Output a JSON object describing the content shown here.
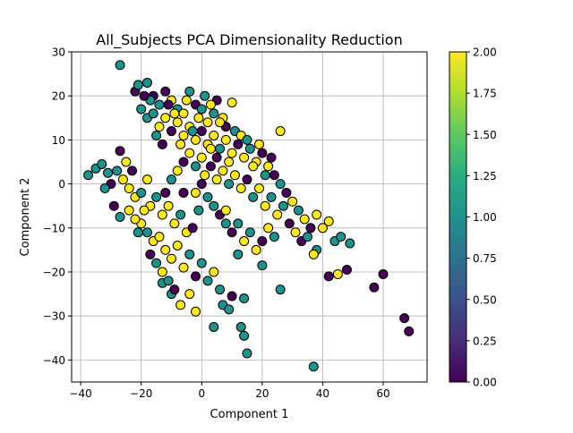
{
  "chart_data": {
    "type": "scatter",
    "title": "All_Subjects PCA Dimensionality Reduction",
    "xlabel": "Component 1",
    "ylabel": "Component 2",
    "xlim": [
      -43,
      74.5
    ],
    "ylim": [
      -45,
      30
    ],
    "xticks": [
      -40,
      -20,
      0,
      20,
      40,
      60
    ],
    "yticks": [
      -40,
      -30,
      -20,
      -10,
      0,
      10,
      20,
      30
    ],
    "grid": true,
    "colormap": "viridis",
    "color_range": [
      0,
      2
    ],
    "colorbar_ticks": [
      "0.00",
      "0.25",
      "0.50",
      "0.75",
      "1.00",
      "1.25",
      "1.50",
      "1.75",
      "2.00"
    ],
    "marker_edge_color": "#000000",
    "points": [
      {
        "x": -27,
        "y": 27,
        "c": 1
      },
      {
        "x": -22,
        "y": 21,
        "c": 0
      },
      {
        "x": -21,
        "y": 22.5,
        "c": 1
      },
      {
        "x": -18,
        "y": 23,
        "c": 1
      },
      {
        "x": -16,
        "y": 20,
        "c": 0
      },
      {
        "x": -14,
        "y": 18,
        "c": 1
      },
      {
        "x": -12,
        "y": 21,
        "c": 0
      },
      {
        "x": -10,
        "y": 19,
        "c": 2
      },
      {
        "x": -8,
        "y": 17,
        "c": 1
      },
      {
        "x": -6,
        "y": 16,
        "c": 2
      },
      {
        "x": -4,
        "y": 21,
        "c": 1
      },
      {
        "x": -2,
        "y": 18,
        "c": 0
      },
      {
        "x": 0,
        "y": 17,
        "c": 1
      },
      {
        "x": 2,
        "y": 14,
        "c": 2
      },
      {
        "x": 5,
        "y": 19,
        "c": 0
      },
      {
        "x": 7,
        "y": 15,
        "c": 2
      },
      {
        "x": 10,
        "y": 18.5,
        "c": 2
      },
      {
        "x": -20,
        "y": 17,
        "c": 1
      },
      {
        "x": -18,
        "y": 15,
        "c": 1
      },
      {
        "x": -16,
        "y": 16,
        "c": 1
      },
      {
        "x": -14,
        "y": 13,
        "c": 2
      },
      {
        "x": -12,
        "y": 15,
        "c": 2
      },
      {
        "x": -10,
        "y": 12,
        "c": 0
      },
      {
        "x": -8,
        "y": 14,
        "c": 2
      },
      {
        "x": -6,
        "y": 11,
        "c": 2
      },
      {
        "x": -4,
        "y": 13,
        "c": 2
      },
      {
        "x": -2,
        "y": 10,
        "c": 2
      },
      {
        "x": 0,
        "y": 12,
        "c": 0
      },
      {
        "x": 2,
        "y": 9,
        "c": 2
      },
      {
        "x": 4,
        "y": 11,
        "c": 2
      },
      {
        "x": 6,
        "y": 8,
        "c": 1
      },
      {
        "x": 8,
        "y": 10,
        "c": 2
      },
      {
        "x": 10,
        "y": 7,
        "c": 2
      },
      {
        "x": 12,
        "y": 9,
        "c": 0
      },
      {
        "x": 14,
        "y": 6,
        "c": 2
      },
      {
        "x": 16,
        "y": 8,
        "c": 1
      },
      {
        "x": 18,
        "y": 5,
        "c": 2
      },
      {
        "x": 20,
        "y": 7,
        "c": 0
      },
      {
        "x": 22,
        "y": 4,
        "c": 2
      },
      {
        "x": 24,
        "y": 2,
        "c": 0
      },
      {
        "x": 26,
        "y": 12,
        "c": 2
      },
      {
        "x": 26,
        "y": 0,
        "c": 1
      },
      {
        "x": 28,
        "y": -2,
        "c": 0
      },
      {
        "x": 30,
        "y": -4,
        "c": 2
      },
      {
        "x": 32,
        "y": -6,
        "c": 1
      },
      {
        "x": 34,
        "y": -8,
        "c": 2
      },
      {
        "x": 36,
        "y": -10,
        "c": 0
      },
      {
        "x": 38,
        "y": -7,
        "c": 2
      },
      {
        "x": 40,
        "y": -10,
        "c": 2
      },
      {
        "x": 42,
        "y": -8.5,
        "c": 2
      },
      {
        "x": 44,
        "y": -13,
        "c": 1
      },
      {
        "x": 46,
        "y": -12,
        "c": 1
      },
      {
        "x": 49,
        "y": -13.5,
        "c": 1
      },
      {
        "x": 38,
        "y": -15,
        "c": 1
      },
      {
        "x": 42,
        "y": -21,
        "c": 0
      },
      {
        "x": 45,
        "y": -20.5,
        "c": 2
      },
      {
        "x": 48,
        "y": -19.5,
        "c": 0
      },
      {
        "x": 57,
        "y": -23.5,
        "c": 0
      },
      {
        "x": 60,
        "y": -20.5,
        "c": 0
      },
      {
        "x": 67,
        "y": -30.5,
        "c": 0
      },
      {
        "x": 68.5,
        "y": -33.5,
        "c": 0
      },
      {
        "x": 37,
        "y": -41.5,
        "c": 1
      },
      {
        "x": 26,
        "y": -24,
        "c": 1
      },
      {
        "x": 20,
        "y": -18.5,
        "c": 1
      },
      {
        "x": 14,
        "y": -26,
        "c": 1
      },
      {
        "x": 13,
        "y": -32.5,
        "c": 1
      },
      {
        "x": 14,
        "y": -34.5,
        "c": 1
      },
      {
        "x": 15,
        "y": -38.5,
        "c": 1
      },
      {
        "x": 4,
        "y": -32.5,
        "c": 1
      },
      {
        "x": 7,
        "y": -27.5,
        "c": 1
      },
      {
        "x": 9,
        "y": -28.5,
        "c": 1
      },
      {
        "x": 10,
        "y": -25.5,
        "c": 0
      },
      {
        "x": -2,
        "y": -29,
        "c": 2
      },
      {
        "x": -7,
        "y": -27.5,
        "c": 2
      },
      {
        "x": -4,
        "y": -25,
        "c": 2
      },
      {
        "x": -10,
        "y": -25,
        "c": 1
      },
      {
        "x": -13,
        "y": -22.5,
        "c": 1
      },
      {
        "x": -37.5,
        "y": 2,
        "c": 1
      },
      {
        "x": -35,
        "y": 3.5,
        "c": 1
      },
      {
        "x": -33,
        "y": 4.5,
        "c": 1
      },
      {
        "x": -31,
        "y": 2.5,
        "c": 1
      },
      {
        "x": -30,
        "y": 0,
        "c": 0
      },
      {
        "x": -32,
        "y": -1,
        "c": 1
      },
      {
        "x": -28,
        "y": 3,
        "c": 1
      },
      {
        "x": -27,
        "y": 7.5,
        "c": 0
      },
      {
        "x": -25,
        "y": 5,
        "c": 2
      },
      {
        "x": -23,
        "y": 3,
        "c": 0
      },
      {
        "x": -26,
        "y": 1,
        "c": 2
      },
      {
        "x": -24,
        "y": -1,
        "c": 2
      },
      {
        "x": -22,
        "y": -3,
        "c": 2
      },
      {
        "x": -20,
        "y": -2,
        "c": 1
      },
      {
        "x": -18,
        "y": 1,
        "c": 2
      },
      {
        "x": -17,
        "y": -5,
        "c": 2
      },
      {
        "x": -15,
        "y": -3,
        "c": 1
      },
      {
        "x": -13,
        "y": -7,
        "c": 2
      },
      {
        "x": -11,
        "y": -5,
        "c": 2
      },
      {
        "x": -9,
        "y": -9,
        "c": 2
      },
      {
        "x": -7,
        "y": -7,
        "c": 1
      },
      {
        "x": -5,
        "y": -11,
        "c": 2
      },
      {
        "x": -3,
        "y": -10,
        "c": 0
      },
      {
        "x": -20,
        "y": -9,
        "c": 2
      },
      {
        "x": -18,
        "y": -11,
        "c": 1
      },
      {
        "x": -16,
        "y": -13,
        "c": 2
      },
      {
        "x": -14,
        "y": -12,
        "c": 2
      },
      {
        "x": -12,
        "y": -15,
        "c": 2
      },
      {
        "x": -10,
        "y": -17,
        "c": 2
      },
      {
        "x": -8,
        "y": -14,
        "c": 2
      },
      {
        "x": -6,
        "y": -19,
        "c": 2
      },
      {
        "x": -4,
        "y": -16,
        "c": 1
      },
      {
        "x": -2,
        "y": -21,
        "c": 0
      },
      {
        "x": 0,
        "y": -18,
        "c": 1
      },
      {
        "x": 2,
        "y": -22,
        "c": 1
      },
      {
        "x": 4,
        "y": -20,
        "c": 2
      },
      {
        "x": 6,
        "y": -24,
        "c": 1
      },
      {
        "x": -15,
        "y": -18,
        "c": 1
      },
      {
        "x": -17,
        "y": -16,
        "c": 0
      },
      {
        "x": -13,
        "y": -20,
        "c": 2
      },
      {
        "x": -11,
        "y": -22,
        "c": 1
      },
      {
        "x": -9,
        "y": -24,
        "c": 0
      },
      {
        "x": -29,
        "y": -5,
        "c": 0
      },
      {
        "x": -27,
        "y": -7.5,
        "c": 1
      },
      {
        "x": -24,
        "y": -6,
        "c": 2
      },
      {
        "x": -21,
        "y": -11,
        "c": 1
      },
      {
        "x": -22,
        "y": -8,
        "c": 2
      },
      {
        "x": -19,
        "y": -6,
        "c": 2
      },
      {
        "x": -12,
        "y": -2,
        "c": 0
      },
      {
        "x": -10,
        "y": 1,
        "c": 1
      },
      {
        "x": -8,
        "y": 3,
        "c": 2
      },
      {
        "x": -6,
        "y": 5,
        "c": 0
      },
      {
        "x": -4,
        "y": 7,
        "c": 2
      },
      {
        "x": -2,
        "y": 4,
        "c": 1
      },
      {
        "x": 0,
        "y": 6,
        "c": 2
      },
      {
        "x": 1,
        "y": 2,
        "c": 2
      },
      {
        "x": 3,
        "y": 4,
        "c": 0
      },
      {
        "x": 5,
        "y": 1,
        "c": 2
      },
      {
        "x": 7,
        "y": 3,
        "c": 2
      },
      {
        "x": 9,
        "y": 0,
        "c": 1
      },
      {
        "x": 11,
        "y": 2,
        "c": 2
      },
      {
        "x": 13,
        "y": -1,
        "c": 2
      },
      {
        "x": 15,
        "y": 1,
        "c": 0
      },
      {
        "x": 17,
        "y": -3,
        "c": 1
      },
      {
        "x": 19,
        "y": -1,
        "c": 2
      },
      {
        "x": 21,
        "y": -5,
        "c": 2
      },
      {
        "x": 23,
        "y": -3,
        "c": 1
      },
      {
        "x": 25,
        "y": -7,
        "c": 2
      },
      {
        "x": 27,
        "y": -5,
        "c": 1
      },
      {
        "x": 29,
        "y": -9,
        "c": 0
      },
      {
        "x": 31,
        "y": -11,
        "c": 2
      },
      {
        "x": 33,
        "y": -13,
        "c": 0
      },
      {
        "x": 35,
        "y": -12,
        "c": 1
      },
      {
        "x": 37,
        "y": -16,
        "c": 2
      },
      {
        "x": 2,
        "y": -3,
        "c": 1
      },
      {
        "x": 4,
        "y": -5,
        "c": 1
      },
      {
        "x": 6,
        "y": -7,
        "c": 0
      },
      {
        "x": 8,
        "y": -9,
        "c": 1
      },
      {
        "x": 10,
        "y": -11,
        "c": 0
      },
      {
        "x": 12,
        "y": -9,
        "c": 1
      },
      {
        "x": 14,
        "y": -13,
        "c": 2
      },
      {
        "x": 16,
        "y": -11,
        "c": 1
      },
      {
        "x": 18,
        "y": -15,
        "c": 2
      },
      {
        "x": 20,
        "y": -13,
        "c": 0
      },
      {
        "x": 22,
        "y": -10,
        "c": 2
      },
      {
        "x": 24,
        "y": -12,
        "c": 1
      },
      {
        "x": 12,
        "y": -16,
        "c": 1
      },
      {
        "x": 8,
        "y": -6,
        "c": 2
      },
      {
        "x": 0,
        "y": 0,
        "c": 0
      },
      {
        "x": -2,
        "y": -2,
        "c": 2
      },
      {
        "x": -1,
        "y": -6,
        "c": 1
      },
      {
        "x": -6,
        "y": -2,
        "c": 0
      },
      {
        "x": 3,
        "y": 8,
        "c": 2
      },
      {
        "x": 5,
        "y": 6,
        "c": 0
      },
      {
        "x": 9,
        "y": 5,
        "c": 2
      },
      {
        "x": 11,
        "y": 12,
        "c": 1
      },
      {
        "x": 13,
        "y": 11,
        "c": 2
      },
      {
        "x": 15,
        "y": 10,
        "c": 1
      },
      {
        "x": 17,
        "y": 4,
        "c": 2
      },
      {
        "x": 19,
        "y": 9,
        "c": 2
      },
      {
        "x": 21,
        "y": 2,
        "c": 1
      },
      {
        "x": 23,
        "y": 6,
        "c": 0
      },
      {
        "x": 8,
        "y": 13,
        "c": 0
      },
      {
        "x": 6,
        "y": 14,
        "c": 2
      },
      {
        "x": 4,
        "y": 16,
        "c": 1
      },
      {
        "x": -1,
        "y": 15,
        "c": 2
      },
      {
        "x": -3,
        "y": 12,
        "c": 1
      },
      {
        "x": -9,
        "y": 16,
        "c": 2
      },
      {
        "x": -11,
        "y": 18,
        "c": 0
      },
      {
        "x": -15,
        "y": 11,
        "c": 1
      },
      {
        "x": -13,
        "y": 9,
        "c": 0
      },
      {
        "x": -7,
        "y": 9,
        "c": 2
      },
      {
        "x": -17,
        "y": 19,
        "c": 1
      },
      {
        "x": -19,
        "y": 20,
        "c": 0
      },
      {
        "x": -5,
        "y": 19,
        "c": 2
      },
      {
        "x": 1,
        "y": 20,
        "c": 1
      },
      {
        "x": 3,
        "y": 18,
        "c": 2
      }
    ]
  }
}
